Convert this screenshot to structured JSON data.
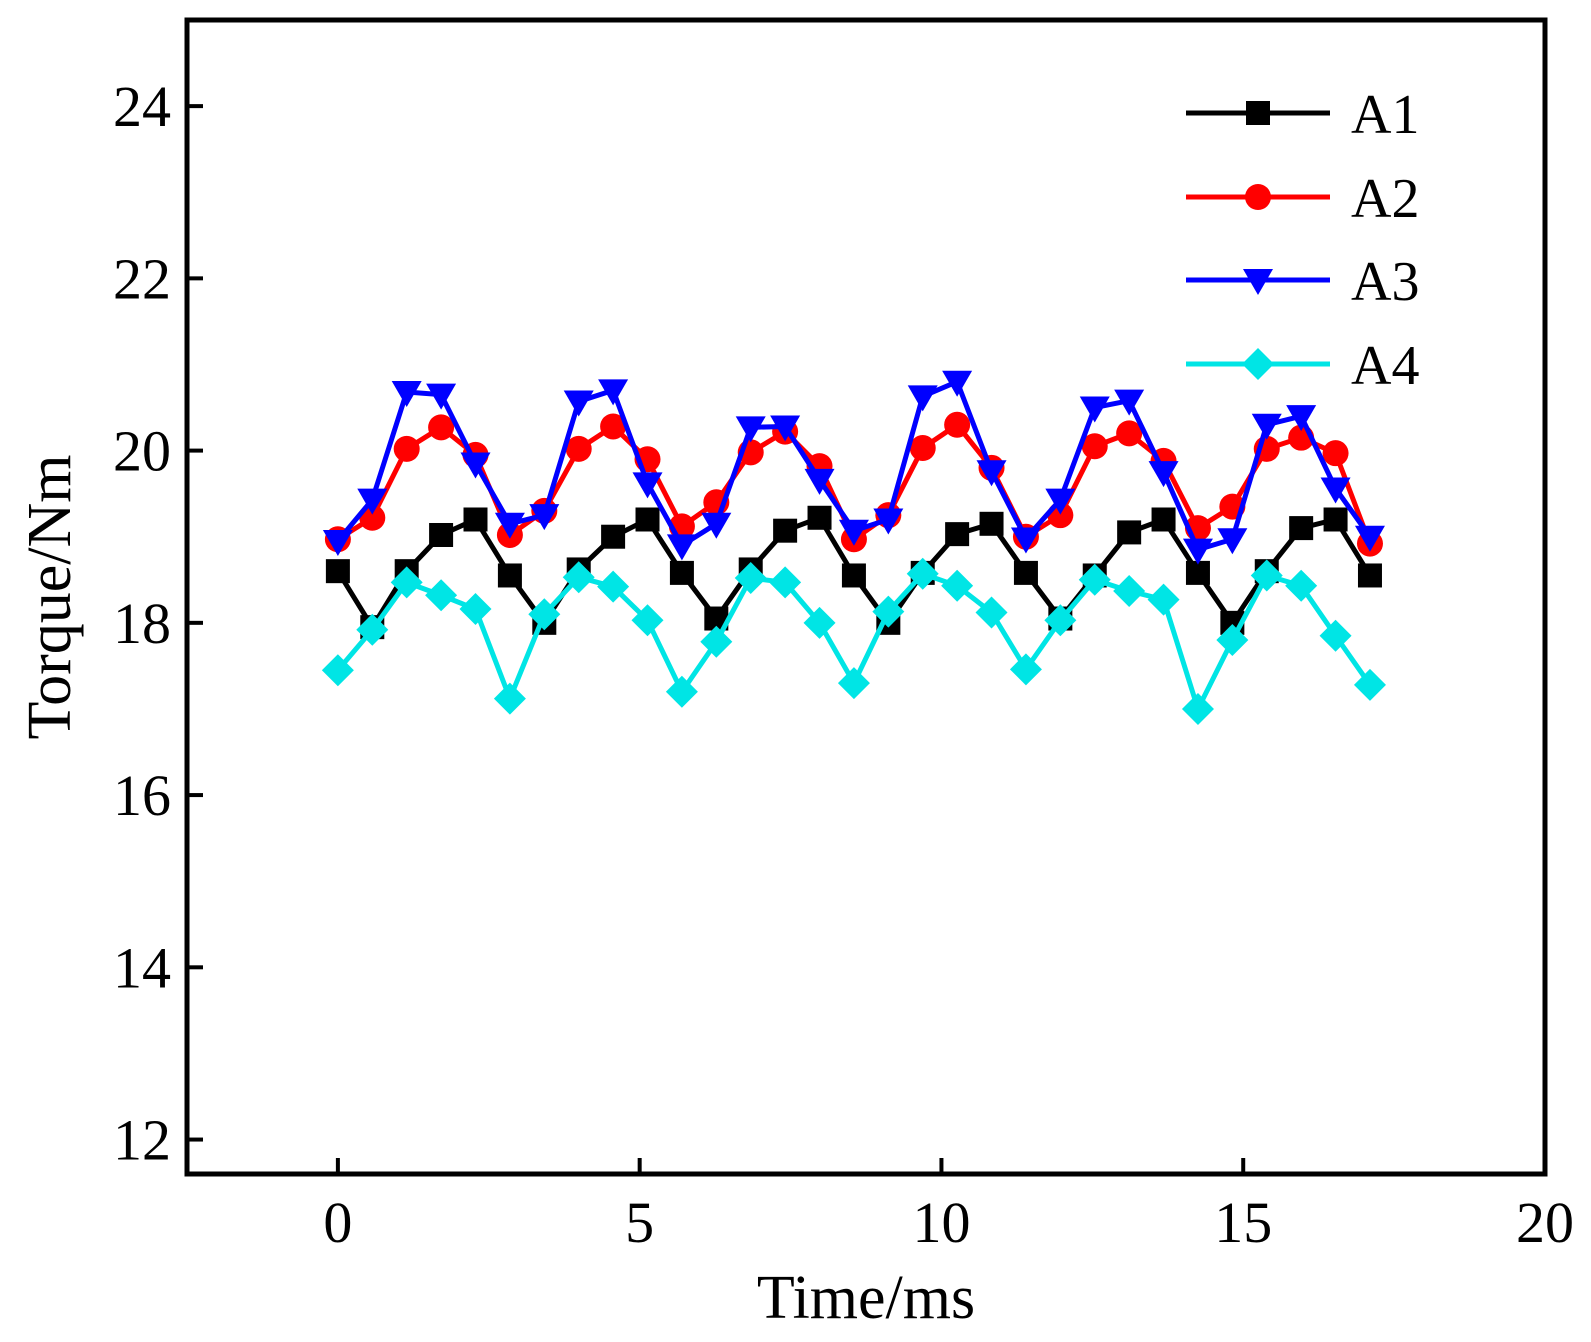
{
  "chart_data": {
    "type": "line",
    "title": "",
    "xlabel": "Time/ms",
    "ylabel": "Torque/Nm",
    "xlim": [
      -2.5,
      20
    ],
    "ylim": [
      11.6,
      25
    ],
    "xticks": [
      0,
      5,
      10,
      15,
      20
    ],
    "yticks": [
      12,
      14,
      16,
      18,
      20,
      22,
      24
    ],
    "xtick_labels": [
      "0",
      "5",
      "10",
      "15",
      "20"
    ],
    "ytick_labels": [
      "12",
      "14",
      "16",
      "18",
      "20",
      "22",
      "24"
    ],
    "grid": false,
    "legend_position": "top-right",
    "x": [
      0,
      0.57,
      1.14,
      1.71,
      2.28,
      2.85,
      3.42,
      3.99,
      4.56,
      5.13,
      5.7,
      6.27,
      6.84,
      7.41,
      7.98,
      8.55,
      9.12,
      9.69,
      10.26,
      10.83,
      11.4,
      11.97,
      12.54,
      13.11,
      13.68,
      14.25,
      14.82,
      15.39,
      15.96,
      16.53,
      17.1
    ],
    "series": [
      {
        "name": "A1",
        "color": "#000000",
        "marker": "square",
        "values": [
          18.6,
          17.95,
          18.6,
          19.02,
          19.2,
          18.55,
          18.0,
          18.62,
          19.0,
          19.2,
          18.58,
          18.05,
          18.62,
          19.07,
          19.22,
          18.55,
          18.0,
          18.58,
          19.03,
          19.15,
          18.58,
          18.05,
          18.55,
          19.05,
          19.2,
          18.58,
          18.0,
          18.6,
          19.1,
          19.2,
          18.55
        ]
      },
      {
        "name": "A2",
        "color": "#ff0000",
        "marker": "circle",
        "values": [
          18.97,
          19.22,
          20.02,
          20.27,
          19.95,
          19.02,
          19.3,
          20.02,
          20.28,
          19.9,
          19.12,
          19.4,
          19.98,
          20.22,
          19.82,
          18.97,
          19.25,
          20.03,
          20.3,
          19.8,
          19.0,
          19.25,
          20.05,
          20.2,
          19.88,
          19.1,
          19.35,
          20.02,
          20.15,
          19.97,
          18.92
        ]
      },
      {
        "name": "A3",
        "color": "#0000ff",
        "marker": "triangle-down",
        "values": [
          18.95,
          19.43,
          20.68,
          20.65,
          19.85,
          19.15,
          19.25,
          20.57,
          20.7,
          19.62,
          18.9,
          19.15,
          20.27,
          20.28,
          19.66,
          19.07,
          19.2,
          20.63,
          20.8,
          19.76,
          18.98,
          19.43,
          20.5,
          20.58,
          19.75,
          18.85,
          18.97,
          20.3,
          20.4,
          19.56,
          19.0
        ]
      },
      {
        "name": "A4",
        "color": "#00e5e5",
        "marker": "diamond",
        "values": [
          17.45,
          17.92,
          18.47,
          18.32,
          18.16,
          17.12,
          18.1,
          18.53,
          18.42,
          18.03,
          17.2,
          17.78,
          18.52,
          18.47,
          18.0,
          17.3,
          18.13,
          18.57,
          18.43,
          18.12,
          17.46,
          18.03,
          18.5,
          18.37,
          18.27,
          17.0,
          17.8,
          18.55,
          18.43,
          17.85,
          17.28
        ]
      }
    ]
  }
}
